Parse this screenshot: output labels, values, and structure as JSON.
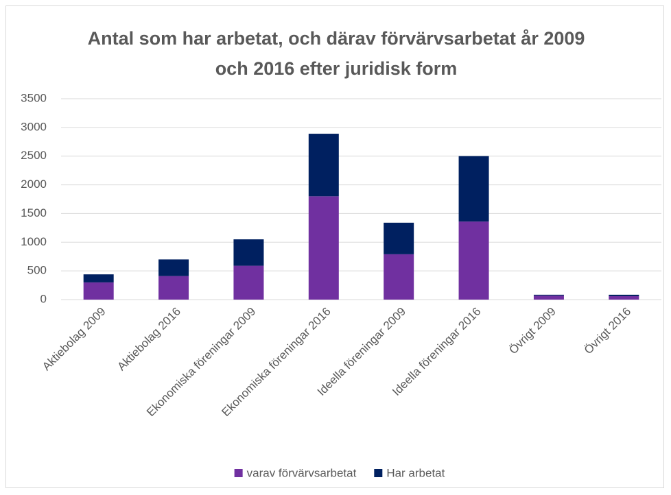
{
  "chart_data": {
    "type": "stacked_bar",
    "title": "Antal som har arbetat, och därav förvärvsarbetat år 2009 och 2016 efter juridisk form",
    "categories": [
      "Aktiebolag 2009",
      "Aktiebolag 2016",
      "Ekonomiska föreningar 2009",
      "Ekonomiska föreningar 2016",
      "Ideella föreningar 2009",
      "Ideella föreningar 2016",
      "Övrigt 2009",
      "Övrigt 2016"
    ],
    "series": [
      {
        "name": "varav förvärvsarbetat",
        "color": "#7030a0",
        "values": [
          300,
          410,
          590,
          1800,
          790,
          1360,
          70,
          60
        ]
      },
      {
        "name": "Har arbetat",
        "color": "#002060",
        "values": [
          140,
          290,
          460,
          1090,
          550,
          1140,
          15,
          25
        ]
      }
    ],
    "ylim": [
      0,
      3500
    ],
    "yticks": [
      0,
      500,
      1000,
      1500,
      2000,
      2500,
      3000,
      3500
    ],
    "grid": true,
    "legend": "bottom"
  }
}
